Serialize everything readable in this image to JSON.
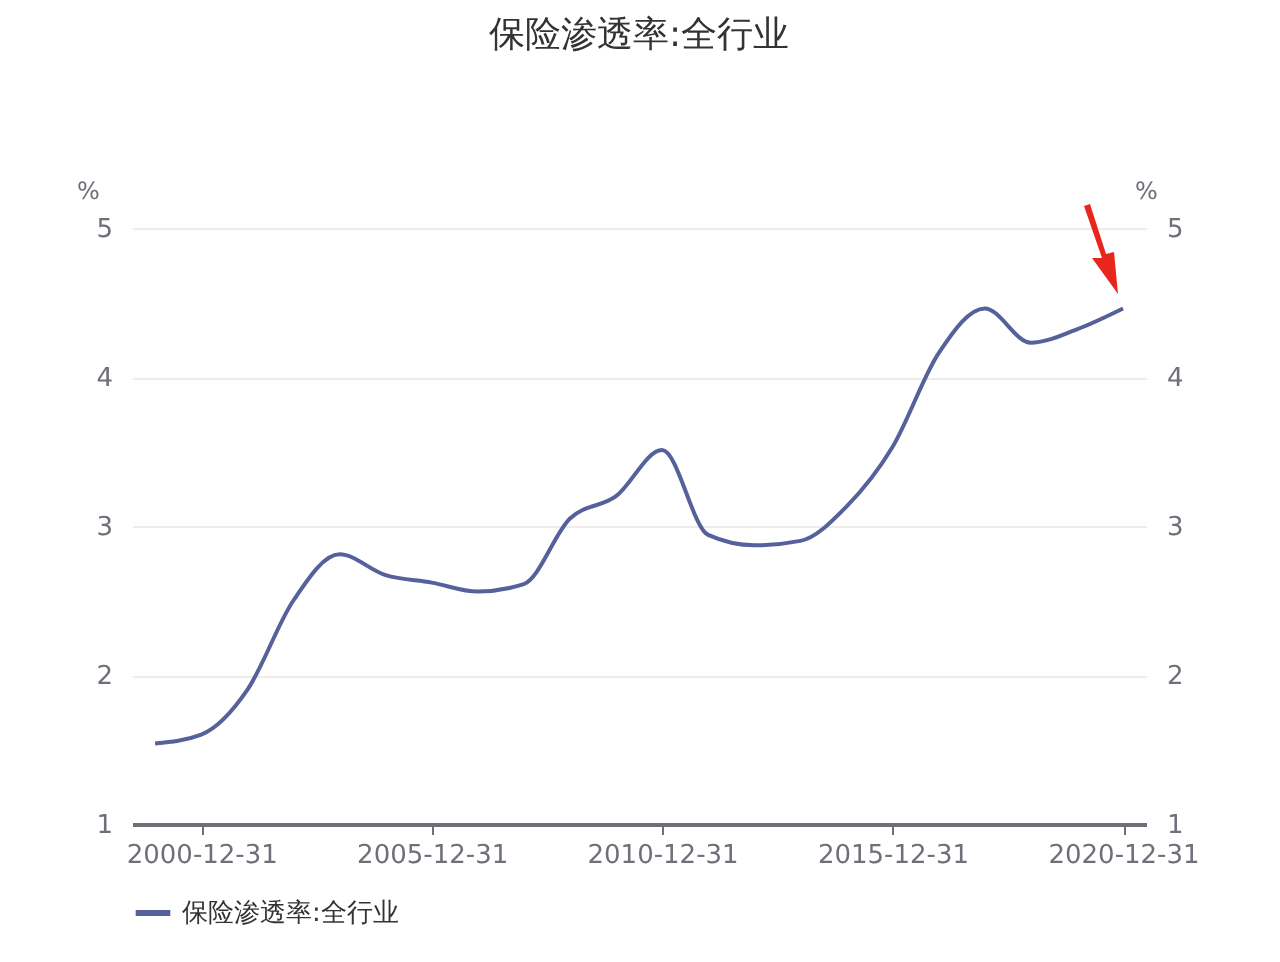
{
  "chart_data": {
    "type": "line",
    "title": "保险渗透率:全行业",
    "ylabel": "%",
    "y2label": "%",
    "x": [
      "1999-12-31",
      "2000-12-31",
      "2001-12-31",
      "2002-12-31",
      "2003-12-31",
      "2004-12-31",
      "2005-12-31",
      "2006-12-31",
      "2007-12-31",
      "2008-12-31",
      "2009-12-31",
      "2010-12-31",
      "2011-12-31",
      "2012-12-31",
      "2013-12-31",
      "2014-12-31",
      "2015-12-31",
      "2016-12-31",
      "2017-12-31",
      "2018-12-31",
      "2019-12-31",
      "2020-12-31"
    ],
    "series": [
      {
        "name": "保险渗透率:全行业",
        "color": "#56609a",
        "values": [
          1.54,
          1.6,
          1.9,
          2.5,
          2.81,
          2.67,
          2.62,
          2.56,
          2.61,
          3.05,
          3.2,
          3.51,
          2.94,
          2.87,
          2.9,
          3.13,
          3.53,
          4.16,
          4.46,
          4.23,
          4.32,
          4.46
        ]
      }
    ],
    "xlim": [
      "1999-07-01",
      "2021-07-01"
    ],
    "xticks": [
      "2000-12-31",
      "2005-12-31",
      "2010-12-31",
      "2015-12-31",
      "2020-12-31"
    ],
    "ylim": [
      1,
      5
    ],
    "yticks": [
      1,
      2,
      3,
      4,
      5
    ],
    "y2lim": [
      1,
      5
    ],
    "y2ticks": [
      1,
      2,
      3,
      4,
      5
    ],
    "grid": "y",
    "legend": "bottom"
  }
}
